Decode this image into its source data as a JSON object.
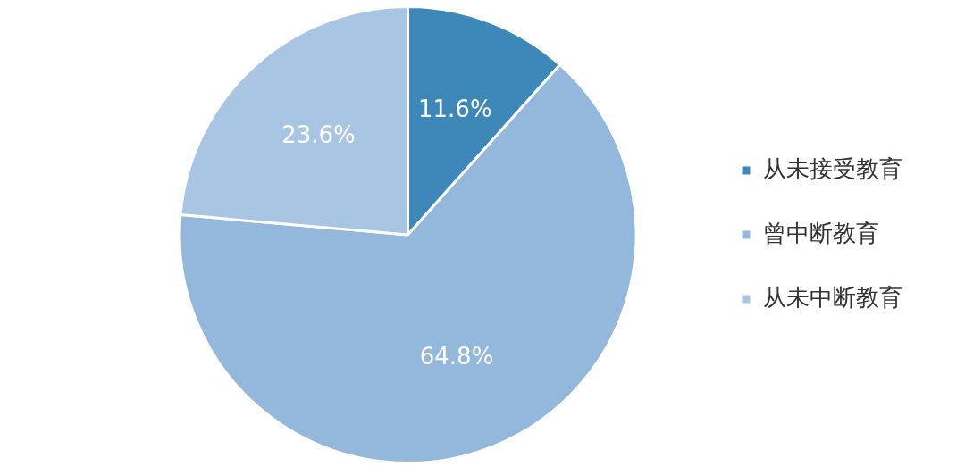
{
  "chart_data": {
    "type": "pie",
    "categories": [
      "从未接受教育",
      "曾中断教育",
      "从未中断教育"
    ],
    "values": [
      11.6,
      64.8,
      23.6
    ],
    "value_labels": [
      "11.6%",
      "64.8%",
      "23.6%"
    ],
    "colors": [
      "#3e87b9",
      "#93b8dc",
      "#a8c6e3"
    ],
    "legend": "right"
  }
}
